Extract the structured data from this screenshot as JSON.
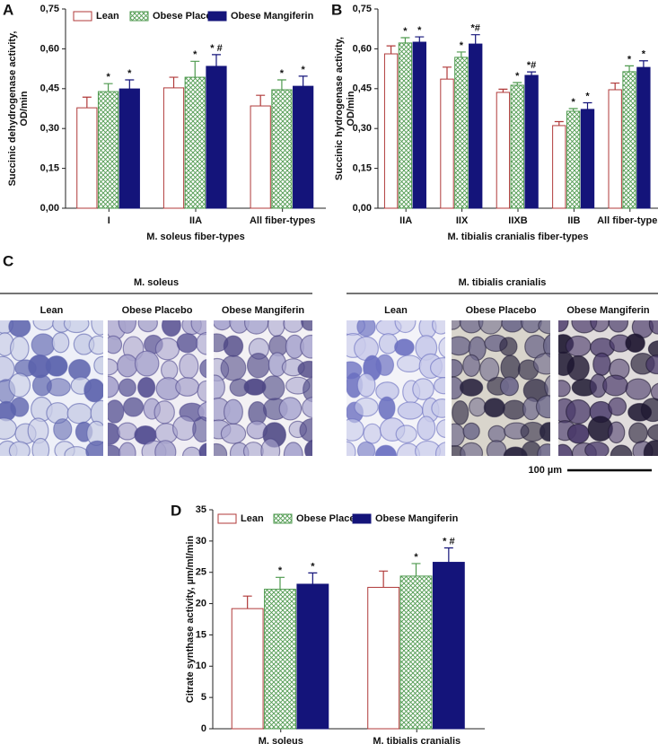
{
  "chart_data": [
    {
      "type": "bar",
      "panel": "A",
      "categories": [
        "I",
        "IIA",
        "All fiber-types"
      ],
      "xlabel": "M. soleus fiber-types",
      "ylabel": [
        "Succinic dehydrogenase activity,",
        "OD/min"
      ],
      "ylim": [
        0,
        0.75
      ],
      "yticks": [
        {
          "value": 0,
          "label": "0,00"
        },
        {
          "value": 0.15,
          "label": "0,15"
        },
        {
          "value": 0.3,
          "label": "0,30"
        },
        {
          "value": 0.45,
          "label": "0,45"
        },
        {
          "value": 0.6,
          "label": "0,60"
        },
        {
          "value": 0.75,
          "label": "0,75"
        }
      ],
      "legend": true,
      "series": [
        {
          "name": "Lean",
          "color": "#b03a3a",
          "style": "outline",
          "values": [
            0.378,
            0.453,
            0.385
          ],
          "errors": [
            0.04,
            0.04,
            0.04
          ],
          "annotations": [
            null,
            null,
            null
          ]
        },
        {
          "name": "Obese Placebo",
          "color": "#4f9a4f",
          "style": "hatch",
          "values": [
            0.439,
            0.493,
            0.446
          ],
          "errors": [
            0.03,
            0.06,
            0.037
          ],
          "annotations": [
            "*",
            "*",
            "*"
          ]
        },
        {
          "name": "Obese Mangiferin",
          "color": "#14147a",
          "style": "solid",
          "values": [
            0.449,
            0.534,
            0.459
          ],
          "errors": [
            0.034,
            0.044,
            0.038
          ],
          "annotations": [
            "*",
            "* #",
            "*"
          ]
        }
      ]
    },
    {
      "type": "bar",
      "panel": "B",
      "categories": [
        "IIA",
        "IIX",
        "IIXB",
        "IIB",
        "All fiber-types"
      ],
      "xlabel": "M. tibialis cranialis fiber-types",
      "ylabel": [
        "Succinic hydrogenase activity,",
        "OD/min"
      ],
      "ylim": [
        0,
        0.75
      ],
      "yticks": [
        {
          "value": 0,
          "label": "0,00"
        },
        {
          "value": 0.15,
          "label": "0,15"
        },
        {
          "value": 0.3,
          "label": "0,30"
        },
        {
          "value": 0.45,
          "label": "0,45"
        },
        {
          "value": 0.6,
          "label": "0,60"
        },
        {
          "value": 0.75,
          "label": "0,75"
        }
      ],
      "legend": false,
      "series": [
        {
          "color": "#b03a3a",
          "style": "outline",
          "values": [
            0.581,
            0.486,
            0.436,
            0.311,
            0.446
          ],
          "errors": [
            0.03,
            0.045,
            0.012,
            0.015,
            0.025
          ],
          "annotations": [
            null,
            null,
            null,
            null,
            null
          ]
        },
        {
          "color": "#4f9a4f",
          "style": "hatch",
          "values": [
            0.622,
            0.568,
            0.463,
            0.365,
            0.514
          ],
          "errors": [
            0.02,
            0.02,
            0.01,
            0.01,
            0.022
          ],
          "annotations": [
            "*",
            "*",
            "*",
            "*",
            "*"
          ]
        },
        {
          "color": "#14147a",
          "style": "solid",
          "values": [
            0.625,
            0.618,
            0.5,
            0.372,
            0.53
          ],
          "errors": [
            0.02,
            0.035,
            0.013,
            0.025,
            0.025
          ],
          "annotations": [
            "*",
            "*#",
            "*#",
            "*",
            "*"
          ]
        }
      ]
    },
    {
      "type": "bar",
      "panel": "D",
      "categories": [
        "M. soleus",
        "M. tibialis cranialis"
      ],
      "ylabel": [
        "Citrate synthase activity, µm/ml/min"
      ],
      "ylim": [
        0,
        35
      ],
      "yticks": [
        0,
        5,
        10,
        15,
        20,
        25,
        30,
        35
      ],
      "legend": true,
      "series": [
        {
          "name": "Lean",
          "color": "#b03a3a",
          "style": "outline",
          "values": [
            19.2,
            22.6
          ],
          "errors": [
            2.0,
            2.6
          ],
          "annotations": [
            null,
            null
          ]
        },
        {
          "name": "Obese Placebo",
          "color": "#4f9a4f",
          "style": "hatch",
          "values": [
            22.3,
            24.4
          ],
          "errors": [
            1.9,
            2.0
          ],
          "annotations": [
            "*",
            "*"
          ]
        },
        {
          "name": "Obese Mangiferin",
          "color": "#14147a",
          "style": "solid",
          "values": [
            23.1,
            26.6
          ],
          "errors": [
            1.8,
            2.3
          ],
          "annotations": [
            "*",
            "* #"
          ]
        }
      ]
    }
  ],
  "panel_c": {
    "panel": "C",
    "groups": [
      {
        "title": "M. soleus",
        "images": [
          "Lean",
          "Obese Placebo",
          "Obese Mangiferin"
        ]
      },
      {
        "title": "M. tibialis cranialis",
        "images": [
          "Lean",
          "Obese Placebo",
          "Obese Mangiferin"
        ]
      }
    ],
    "scale_bar": "100 µm"
  }
}
